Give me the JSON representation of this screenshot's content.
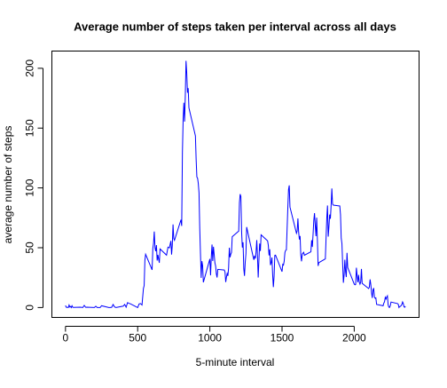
{
  "chart_data": {
    "type": "line",
    "title": "Average number of steps taken per interval across all days",
    "x_label": "5-minute interval",
    "y_label": "average number of steps",
    "x": [
      0,
      5,
      10,
      15,
      20,
      25,
      30,
      35,
      40,
      45,
      50,
      55,
      100,
      110,
      120,
      130,
      140,
      150,
      200,
      210,
      220,
      230,
      240,
      250,
      300,
      310,
      320,
      330,
      340,
      350,
      400,
      410,
      420,
      430,
      440,
      450,
      500,
      510,
      520,
      530,
      540,
      545,
      550,
      555,
      600,
      605,
      610,
      615,
      620,
      625,
      630,
      635,
      640,
      650,
      655,
      700,
      710,
      720,
      730,
      735,
      740,
      745,
      750,
      755,
      800,
      805,
      810,
      815,
      820,
      825,
      830,
      835,
      840,
      845,
      850,
      855,
      900,
      905,
      910,
      915,
      920,
      925,
      930,
      935,
      940,
      945,
      950,
      955,
      1000,
      1005,
      1010,
      1015,
      1020,
      1025,
      1030,
      1035,
      1040,
      1045,
      1050,
      1055,
      1100,
      1105,
      1110,
      1115,
      1120,
      1125,
      1130,
      1135,
      1140,
      1145,
      1150,
      1155,
      1200,
      1205,
      1210,
      1215,
      1220,
      1225,
      1230,
      1235,
      1240,
      1245,
      1250,
      1255,
      1300,
      1305,
      1310,
      1315,
      1320,
      1325,
      1330,
      1335,
      1340,
      1345,
      1350,
      1355,
      1400,
      1405,
      1410,
      1415,
      1420,
      1425,
      1430,
      1435,
      1440,
      1445,
      1450,
      1455,
      1500,
      1505,
      1510,
      1515,
      1520,
      1525,
      1530,
      1535,
      1540,
      1545,
      1550,
      1555,
      1600,
      1605,
      1610,
      1615,
      1620,
      1625,
      1630,
      1635,
      1640,
      1645,
      1650,
      1655,
      1700,
      1705,
      1710,
      1715,
      1720,
      1725,
      1730,
      1735,
      1740,
      1745,
      1750,
      1755,
      1800,
      1805,
      1810,
      1815,
      1820,
      1825,
      1830,
      1835,
      1840,
      1845,
      1850,
      1855,
      1900,
      1905,
      1910,
      1915,
      1920,
      1925,
      1930,
      1935,
      1940,
      1945,
      1950,
      1955,
      2000,
      2005,
      2010,
      2015,
      2020,
      2025,
      2030,
      2035,
      2040,
      2045,
      2050,
      2055,
      2100,
      2105,
      2110,
      2115,
      2120,
      2125,
      2130,
      2135,
      2140,
      2145,
      2150,
      2155,
      2200,
      2205,
      2210,
      2215,
      2220,
      2225,
      2230,
      2235,
      2240,
      2245,
      2250,
      2255,
      2300,
      2305,
      2310,
      2315,
      2320,
      2325,
      2330,
      2335,
      2340,
      2345,
      2350,
      2355
    ],
    "values": [
      1.7,
      0.3,
      0.1,
      0.2,
      0.1,
      2.1,
      0.5,
      0.9,
      0,
      1.5,
      0.3,
      0.1,
      0.3,
      0.2,
      0,
      1.8,
      0.2,
      0.3,
      0,
      1.1,
      0,
      0,
      0,
      1.5,
      0,
      0,
      0.2,
      2.6,
      0.5,
      0,
      1.2,
      2.6,
      0.3,
      4.1,
      3.5,
      3.1,
      0,
      3,
      3.3,
      2.1,
      16,
      18.3,
      39.5,
      44.5,
      31.5,
      49.3,
      53.8,
      63.5,
      50,
      47.1,
      52.2,
      39.3,
      44,
      37.4,
      49,
      43.8,
      50.5,
      49.9,
      55.7,
      44.3,
      52.3,
      69.5,
      57.8,
      56.2,
      73.4,
      68.2,
      129.4,
      157.5,
      171.2,
      155.4,
      177.3,
      206.2,
      195.9,
      179.6,
      183.4,
      167,
      143.5,
      124,
      109.1,
      108.1,
      103.7,
      95.9,
      66.2,
      45.2,
      24.8,
      38.8,
      35,
      21.1,
      40.6,
      26.9,
      42.4,
      52.7,
      38.9,
      50.8,
      44.3,
      37.4,
      34.7,
      28.3,
      25.1,
      31.9,
      31.4,
      29.7,
      21.3,
      25.5,
      28.4,
      26.5,
      33.4,
      50,
      42,
      44.6,
      46,
      59.2,
      63.9,
      87.7,
      94.8,
      92.8,
      63.4,
      50.2,
      54.5,
      32.4,
      26.5,
      37.7,
      45.1,
      67.3,
      42.3,
      39.9,
      43.3,
      41,
      46.2,
      56.4,
      42.8,
      25.1,
      40,
      53.5,
      47.3,
      60.8,
      55.8,
      52,
      43.6,
      48.7,
      35.5,
      37.5,
      41.8,
      27.5,
      17.1,
      26.1,
      43.6,
      43.8,
      30,
      36.1,
      35.5,
      38.8,
      46,
      47.8,
      48.1,
      65.3,
      82.9,
      98.7,
      102.1,
      84,
      62.1,
      64.1,
      74.5,
      63.2,
      56.9,
      59.8,
      43.9,
      38.6,
      44.7,
      45.5,
      46.2,
      43.7,
      46.6,
      56.3,
      50.7,
      61.2,
      72.7,
      78.9,
      68.9,
      59.7,
      75.1,
      56.5,
      34.8,
      37.5,
      40.7,
      58,
      74.7,
      85.3,
      59.3,
      67.8,
      77.7,
      74.2,
      85.3,
      99.5,
      86.6,
      85.6,
      84.9,
      77.8,
      58,
      53.4,
      36.3,
      20.7,
      27.4,
      40,
      30.2,
      25.5,
      45.7,
      33.5,
      19.6,
      19,
      19.3,
      33.3,
      26.8,
      21.2,
      27.3,
      21.3,
      19.5,
      21.3,
      32.3,
      20.2,
      15.9,
      17.2,
      23.5,
      19.2,
      12.5,
      8,
      14.7,
      16.3,
      8.7,
      7.8,
      8.1,
      2.6,
      1.5,
      3.7,
      4.8,
      8.5,
      7.1,
      8.7,
      9.8,
      2.2,
      0.3,
      0.1,
      1.6,
      4.6,
      3.3,
      2.8,
      0,
      0.8,
      1,
      1.6,
      2.6,
      4.7,
      3.3,
      0.6,
      0.2,
      1.1
    ],
    "color": "#0000ff",
    "xlim": [
      -94.2,
      2449.2
    ],
    "xticks": [
      0,
      500,
      1000,
      1500,
      2000
    ],
    "ylim": [
      -8.25,
      214.4
    ],
    "yticks": [
      0,
      50,
      100,
      150,
      200
    ]
  }
}
